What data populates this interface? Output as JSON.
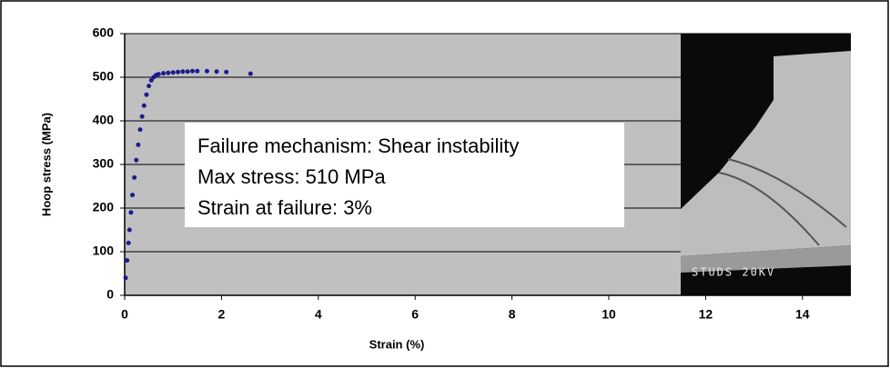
{
  "chart_data": {
    "type": "scatter",
    "x_label": "Strain (%)",
    "y_label": "Hoop stress (MPa)",
    "xlim": [
      0,
      15
    ],
    "xticks": [
      0,
      2,
      4,
      6,
      8,
      10,
      12,
      14
    ],
    "ylim": [
      0,
      600
    ],
    "yticks": [
      0,
      100,
      200,
      300,
      400,
      500,
      600
    ],
    "grid": true,
    "series": [
      {
        "color": "#1c1c8c",
        "x": [
          0.02,
          0.05,
          0.08,
          0.1,
          0.13,
          0.16,
          0.2,
          0.24,
          0.28,
          0.32,
          0.36,
          0.4,
          0.45,
          0.5,
          0.55,
          0.6,
          0.65,
          0.7,
          0.8,
          0.9,
          1.0,
          1.1,
          1.2,
          1.3,
          1.4,
          1.5,
          1.7,
          1.9,
          2.1,
          2.6
        ],
        "values": [
          40,
          80,
          120,
          150,
          190,
          230,
          270,
          310,
          345,
          380,
          410,
          435,
          460,
          480,
          493,
          500,
          505,
          507,
          509,
          510,
          511,
          512,
          513,
          513,
          514,
          514,
          514,
          513,
          512,
          508
        ]
      }
    ],
    "annotations": [
      "Failure mechanism: Shear instability",
      "Max stress: 510 MPa",
      "Strain at failure: 3%"
    ],
    "inset_label": "STUDS 20KV"
  }
}
